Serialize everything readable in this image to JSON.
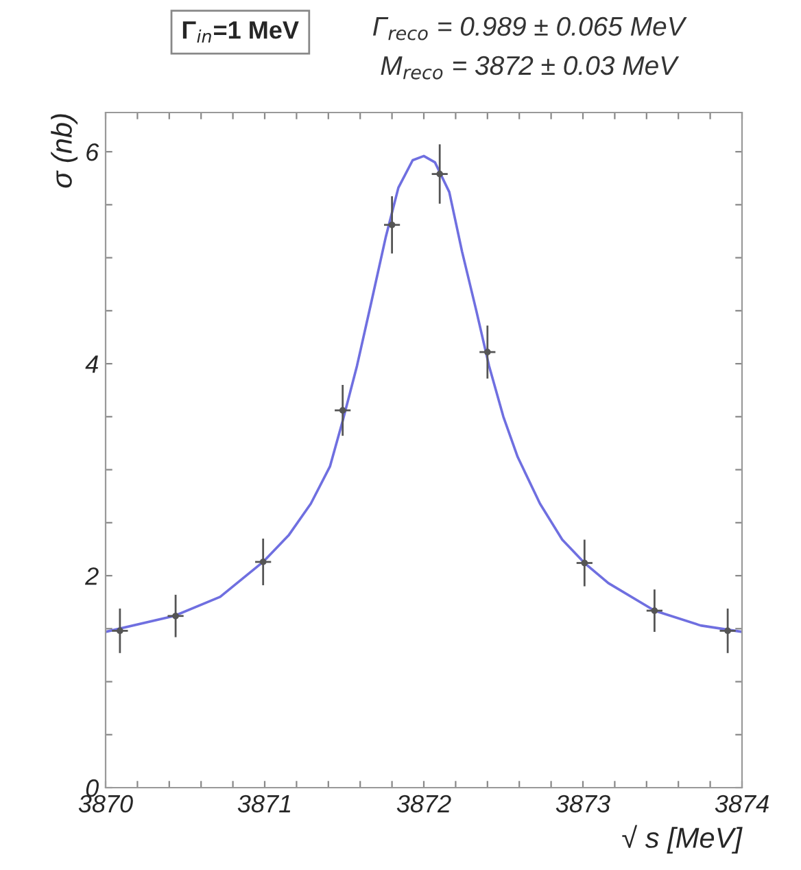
{
  "chart_data": {
    "type": "scatter",
    "xlabel": "√ s [MeV]",
    "ylabel": "σ (nb)",
    "annotations": [
      "Γ$_{in}$=1 MeV",
      "Γ$_{reco}$ = 0.989 ± 0.065 MeV",
      "M$_{reco}$ = 3872 ± 0.03 MeV"
    ],
    "xlim": [
      3870,
      3874
    ],
    "ylim": [
      0,
      6.37
    ],
    "xticks": [
      3870,
      {
        "value": 3870.2,
        "label": null
      },
      {
        "value": 3870.4,
        "label": null
      },
      {
        "value": 3870.6,
        "label": null
      },
      {
        "value": 3870.8,
        "label": null
      },
      3871,
      {
        "value": 3871.2,
        "label": null
      },
      {
        "value": 3871.4,
        "label": null
      },
      {
        "value": 3871.6,
        "label": null
      },
      {
        "value": 3871.8,
        "label": null
      },
      3872,
      {
        "value": 3872.2,
        "label": null
      },
      {
        "value": 3872.4,
        "label": null
      },
      {
        "value": 3872.6,
        "label": null
      },
      {
        "value": 3872.8,
        "label": null
      },
      3873,
      {
        "value": 3873.2,
        "label": null
      },
      {
        "value": 3873.4,
        "label": null
      },
      {
        "value": 3873.6,
        "label": null
      },
      {
        "value": 3873.8,
        "label": null
      },
      3874
    ],
    "yticks": [
      0,
      {
        "value": 0.5,
        "label": null
      },
      {
        "value": 1,
        "label": null
      },
      {
        "value": 1.5,
        "label": null
      },
      2,
      {
        "value": 2.5,
        "label": null
      },
      {
        "value": 3,
        "label": null
      },
      {
        "value": 3.5,
        "label": null
      },
      4,
      {
        "value": 4.5,
        "label": null
      },
      {
        "value": 5,
        "label": null
      },
      {
        "value": 5.5,
        "label": null
      },
      6
    ],
    "grid": false,
    "legend": false,
    "series": [
      {
        "marker": "circle",
        "color": "#555555",
        "x": [
          3870.09,
          3870.44,
          3870.99,
          3871.49,
          3871.8,
          3872.1,
          3872.4,
          3873.01,
          3873.45,
          3873.91
        ],
        "values": [
          1.48,
          1.62,
          2.13,
          3.56,
          5.31,
          5.79,
          4.11,
          2.12,
          1.67,
          1.48
        ],
        "errors": [
          0.21,
          0.2,
          0.22,
          0.24,
          0.27,
          0.28,
          0.25,
          0.22,
          0.2,
          0.21
        ],
        "xerrors": [
          0.05,
          0.05,
          0.05,
          0.05,
          0.05,
          0.05,
          0.05,
          0.05,
          0.05,
          0.05
        ]
      },
      {
        "type": "line",
        "marker": "none",
        "line_style": "solid",
        "color": "#6f6fe0",
        "x": [
          3870.0,
          3870.43,
          3870.72,
          3870.99,
          3871.15,
          3871.29,
          3871.41,
          3871.49,
          3871.58,
          3871.67,
          3871.76,
          3871.84,
          3871.93,
          3872.0,
          3872.07,
          3872.16,
          3872.24,
          3872.33,
          3872.41,
          3872.5,
          3872.59,
          3872.73,
          3872.87,
          3873.01,
          3873.16,
          3873.45,
          3873.74,
          3874.0
        ],
        "values": [
          1.47,
          1.62,
          1.8,
          2.13,
          2.38,
          2.68,
          3.03,
          3.46,
          3.98,
          4.58,
          5.19,
          5.66,
          5.92,
          5.96,
          5.9,
          5.62,
          5.06,
          4.5,
          3.98,
          3.5,
          3.12,
          2.68,
          2.34,
          2.12,
          1.93,
          1.67,
          1.53,
          1.47
        ]
      }
    ]
  }
}
